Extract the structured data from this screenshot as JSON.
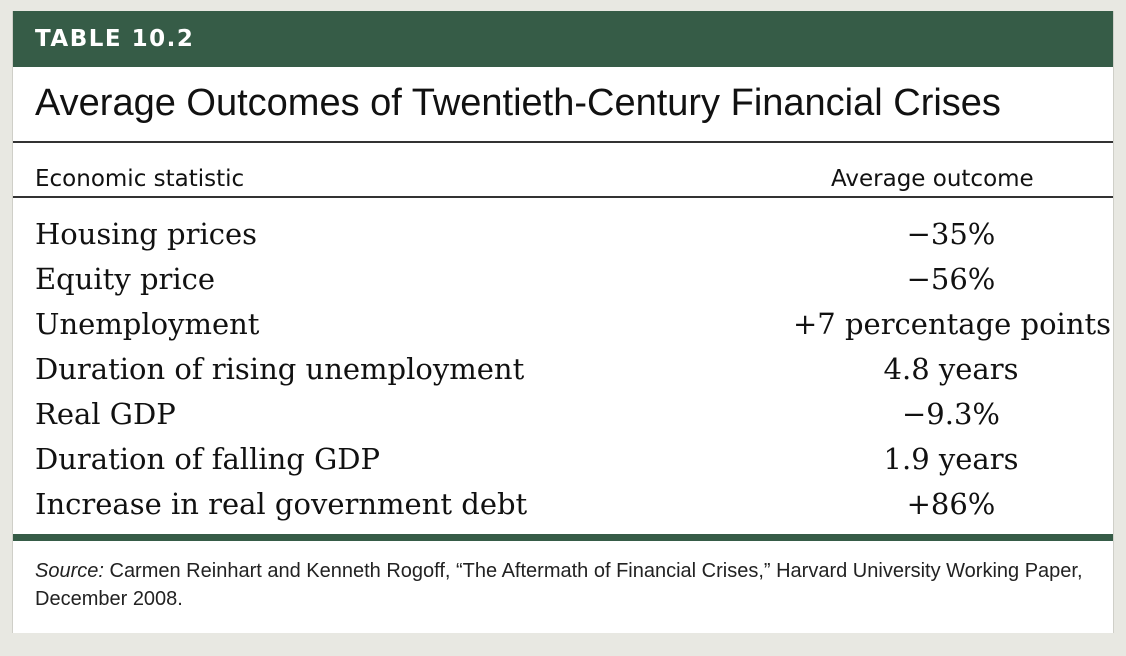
{
  "table": {
    "label": "TABLE 10.2",
    "title": "Average Outcomes of Twentieth-Century Financial Crises",
    "columns": [
      "Economic statistic",
      "Average outcome"
    ],
    "rows": [
      {
        "statistic": "Housing prices",
        "outcome": "−35%"
      },
      {
        "statistic": "Equity price",
        "outcome": "−56%"
      },
      {
        "statistic": "Unemployment",
        "outcome": "+7 percentage points"
      },
      {
        "statistic": "Duration of rising unemployment",
        "outcome": "4.8 years"
      },
      {
        "statistic": "Real GDP",
        "outcome": "−9.3%"
      },
      {
        "statistic": "Duration of falling GDP",
        "outcome": "1.9 years"
      },
      {
        "statistic": "Increase in real government debt",
        "outcome": "+86%"
      }
    ],
    "source_label": "Source:",
    "source_text": " Carmen Reinhart and Kenneth Rogoff, “The Aftermath of Financial Crises,” Harvard University Working Paper, December 2008."
  },
  "colors": {
    "band": "#365c47",
    "background": "#e8e8e2"
  }
}
